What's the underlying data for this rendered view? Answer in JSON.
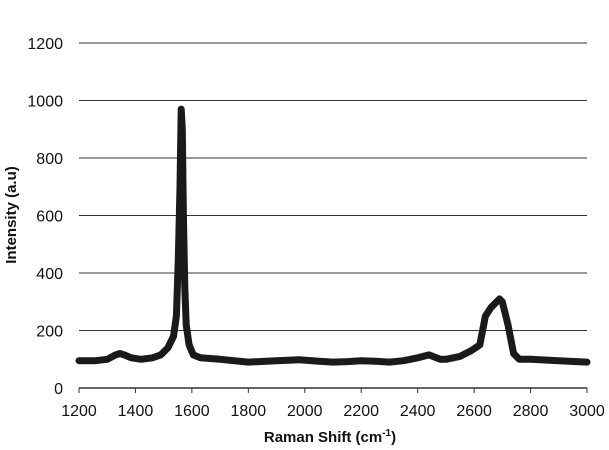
{
  "chart_data": {
    "type": "line",
    "title": "",
    "xlabel": "Raman Shift (cm",
    "xlabel_sup": "-1",
    "xlabel_suffix": ")",
    "ylabel": "Intensity (a.u)",
    "xlim": [
      1200,
      3000
    ],
    "ylim": [
      0,
      1200
    ],
    "x_ticks": [
      1200,
      1400,
      1600,
      1800,
      2000,
      2200,
      2400,
      2600,
      2800,
      3000
    ],
    "y_ticks": [
      0,
      200,
      400,
      600,
      800,
      1000,
      1200
    ],
    "x_tick_labels": [
      "1200",
      "1400",
      "1600",
      "1800",
      "2000",
      "2200",
      "2400",
      "2600",
      "2800",
      "3000"
    ],
    "y_tick_labels": [
      "0",
      "200",
      "400",
      "600",
      "800",
      "1000",
      "1200"
    ],
    "grid": "horizontal",
    "legend": "none",
    "line_color": "#1a1a1a",
    "grid_color": "#333333",
    "series": [
      {
        "x": [
          1200,
          1260,
          1300,
          1330,
          1345,
          1360,
          1385,
          1420,
          1460,
          1490,
          1515,
          1535,
          1545,
          1552,
          1558,
          1562,
          1566,
          1570,
          1575,
          1580,
          1590,
          1605,
          1630,
          1700,
          1800,
          1900,
          1980,
          2050,
          2100,
          2150,
          2200,
          2250,
          2300,
          2350,
          2400,
          2440,
          2480,
          2500,
          2550,
          2590,
          2620,
          2640,
          2660,
          2690,
          2700,
          2720,
          2740,
          2760,
          2800,
          2900,
          3000
        ],
        "y": [
          95,
          95,
          100,
          115,
          120,
          115,
          105,
          100,
          105,
          115,
          140,
          180,
          250,
          450,
          700,
          970,
          900,
          600,
          350,
          220,
          150,
          115,
          105,
          100,
          90,
          95,
          98,
          93,
          90,
          92,
          95,
          93,
          90,
          95,
          105,
          115,
          100,
          100,
          110,
          130,
          150,
          250,
          280,
          310,
          300,
          220,
          120,
          100,
          100,
          95,
          90
        ]
      }
    ]
  }
}
